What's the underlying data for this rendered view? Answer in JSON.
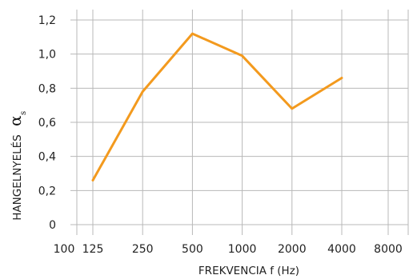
{
  "chart_data": {
    "type": "line",
    "xlabel": "FREKVENCIA f (Hz)",
    "ylabel": "HANGELNYELÉS",
    "ylabel_symbol": "α",
    "ylabel_symbol_subscript": "s",
    "x_tick_labels": [
      "100",
      "125",
      "250",
      "500",
      "1000",
      "2000",
      "4000",
      "8000"
    ],
    "y_tick_labels": [
      "0",
      "0,2",
      "0,4",
      "0,6",
      "0,8",
      "1,0",
      "1,2"
    ],
    "ylim": [
      0,
      1.2
    ],
    "grid": true,
    "series": [
      {
        "x": [
          "125",
          "250",
          "500",
          "1000",
          "2000",
          "4000"
        ],
        "y": [
          0.26,
          0.78,
          1.12,
          0.99,
          0.68,
          0.86
        ]
      }
    ],
    "colors": {
      "line": "#f39a1e",
      "grid": "#b8b8b8"
    }
  }
}
